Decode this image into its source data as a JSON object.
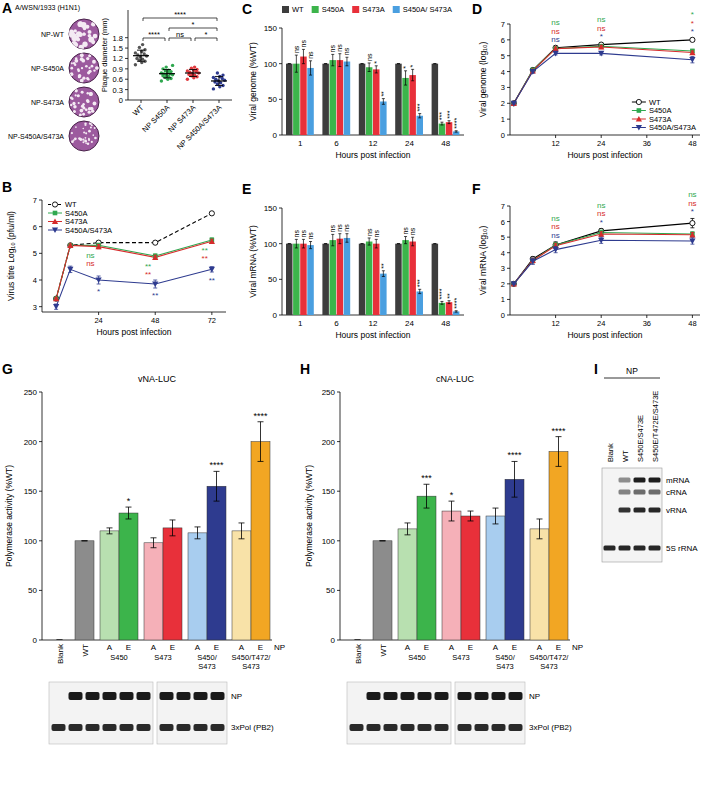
{
  "chart_data": [
    {
      "panel": "A",
      "type": "dot",
      "ylabel": "Plaque diameter (mm)",
      "categories": [
        "WT",
        "NP S450A",
        "NP S473A",
        "NP S450A/S473A"
      ],
      "colors": [
        "#555555",
        "#2fa84f",
        "#e03a3e",
        "#2e3b8f"
      ],
      "points": [
        [
          1.02,
          1.08,
          1.12,
          1.15,
          1.18,
          1.2,
          1.24,
          1.27,
          1.3,
          1.33,
          1.36,
          1.4,
          1.45,
          1.52,
          1.6
        ],
        [
          0.55,
          0.6,
          0.62,
          0.65,
          0.68,
          0.7,
          0.72,
          0.73,
          0.75,
          0.76,
          0.78,
          0.8,
          0.82,
          0.84,
          0.86,
          0.9,
          0.95,
          1.0
        ],
        [
          0.6,
          0.64,
          0.67,
          0.7,
          0.72,
          0.74,
          0.76,
          0.78,
          0.8,
          0.82,
          0.84,
          0.86,
          0.88,
          0.92,
          0.95
        ],
        [
          0.32,
          0.38,
          0.42,
          0.46,
          0.5,
          0.52,
          0.55,
          0.57,
          0.6,
          0.62,
          0.65,
          0.68,
          0.72,
          0.78
        ]
      ],
      "values": [
        1.28,
        0.76,
        0.78,
        0.55
      ],
      "error": [
        0.16,
        0.12,
        0.1,
        0.13
      ],
      "ylim": [
        0,
        2.6
      ],
      "yticks": [
        0,
        0.3,
        0.6,
        0.9,
        1.2,
        1.5,
        1.8
      ],
      "annotations": [
        {
          "from": 0,
          "to": 1,
          "text": "****"
        },
        {
          "from": 1,
          "to": 2,
          "text": "ns"
        },
        {
          "from": 2,
          "to": 3,
          "text": "*"
        },
        {
          "from": 1,
          "to": 3,
          "text": "*"
        },
        {
          "from": 0,
          "to": 3,
          "text": "****"
        }
      ]
    },
    {
      "panel": "B",
      "type": "line",
      "xlabel": "Hours post infection",
      "ylabel": "Virus titre Log₁₀ (pfu/ml)",
      "x": [
        6,
        12,
        24,
        48,
        72
      ],
      "xlim": [
        0,
        78
      ],
      "xticks": [
        24,
        48,
        72
      ],
      "ylim": [
        2.8,
        7
      ],
      "yticks": [
        3,
        4,
        5,
        6,
        7
      ],
      "legend": "upper left",
      "series": [
        {
          "name": "WT",
          "color": "#000000",
          "marker": "open-circle",
          "line_style": "dashed",
          "values": [
            3.3,
            5.3,
            5.4,
            5.4,
            6.5
          ],
          "error": [
            0.05,
            0.05,
            0.05,
            0.05,
            0.05
          ]
        },
        {
          "name": "S450A",
          "color": "#2fa84f",
          "marker": "square",
          "line_style": "solid",
          "values": [
            3.3,
            5.3,
            5.3,
            4.9,
            5.5
          ],
          "error": [
            0.05,
            0.05,
            0.08,
            0.08,
            0.08
          ],
          "significance": [
            null,
            null,
            "ns",
            "**",
            "**"
          ]
        },
        {
          "name": "S473A",
          "color": "#d62c2c",
          "marker": "triangle",
          "line_style": "solid",
          "values": [
            3.3,
            5.3,
            5.25,
            4.85,
            5.45
          ],
          "error": [
            0.05,
            0.05,
            0.08,
            0.08,
            0.08
          ],
          "significance": [
            null,
            null,
            "ns",
            "**",
            "**"
          ]
        },
        {
          "name": "S450A/S473A",
          "color": "#2e3b8f",
          "marker": "triangle-down",
          "line_style": "solid",
          "values": [
            3.0,
            4.4,
            4.0,
            3.85,
            4.4
          ],
          "error": [
            0.1,
            0.12,
            0.15,
            0.15,
            0.1
          ],
          "significance": [
            null,
            null,
            "*",
            "**",
            "**"
          ]
        }
      ]
    },
    {
      "panel": "C",
      "type": "bar",
      "xlabel": "Hours post infection",
      "ylabel": "Viral genome (%WT)",
      "categories": [
        "1",
        "6",
        "12",
        "24",
        "48"
      ],
      "ylim": [
        0,
        150
      ],
      "yticks": [
        0,
        50,
        100,
        150
      ],
      "legend": "top",
      "series": [
        {
          "name": "WT",
          "color": "#3d3d3d",
          "values": [
            100,
            100,
            100,
            100,
            100
          ],
          "error": [
            0,
            0,
            0,
            0,
            0
          ]
        },
        {
          "name": "S450A",
          "color": "#3cb44b",
          "values": [
            100,
            105,
            95,
            80,
            16
          ],
          "error": [
            12,
            8,
            6,
            10,
            2
          ],
          "significance": [
            "ns",
            "ns",
            "ns",
            "*",
            "***"
          ]
        },
        {
          "name": "S473A",
          "color": "#e8303a",
          "values": [
            110,
            105,
            92,
            84,
            18
          ],
          "error": [
            10,
            9,
            5,
            8,
            2
          ],
          "significance": [
            "ns",
            "ns",
            "*",
            "*",
            "***"
          ]
        },
        {
          "name": "S450A/ S473A",
          "color": "#4a9fe0",
          "values": [
            94,
            103,
            47,
            27,
            5
          ],
          "error": [
            10,
            6,
            4,
            3,
            1
          ],
          "significance": [
            "ns",
            "ns",
            "**",
            "***",
            "****"
          ]
        }
      ]
    },
    {
      "panel": "D",
      "type": "line",
      "xlabel": "Hours post infection",
      "ylabel": "Viral genome (log₁₀)",
      "x": [
        1,
        6,
        12,
        24,
        48
      ],
      "xlim": [
        0,
        50
      ],
      "xticks": [
        12,
        24,
        36,
        48
      ],
      "ylim": [
        0,
        7
      ],
      "yticks": [
        0,
        1,
        2,
        3,
        4,
        5,
        6,
        7
      ],
      "legend": "lower right",
      "series": [
        {
          "name": "WT",
          "color": "#000000",
          "marker": "open-circle",
          "line_style": "solid",
          "values": [
            2.0,
            4.1,
            5.5,
            5.7,
            6.0
          ],
          "error": [
            0.05,
            0.1,
            0.1,
            0.1,
            0.1
          ]
        },
        {
          "name": "S450A",
          "color": "#2fa84f",
          "marker": "square",
          "line_style": "solid",
          "values": [
            2.0,
            4.1,
            5.45,
            5.6,
            5.3
          ],
          "error": [
            0.05,
            0.1,
            0.1,
            0.1,
            0.1
          ],
          "significance": [
            null,
            null,
            "ns",
            "ns",
            "*"
          ]
        },
        {
          "name": "S473A",
          "color": "#d62c2c",
          "marker": "triangle",
          "line_style": "solid",
          "values": [
            2.0,
            4.05,
            5.45,
            5.55,
            5.2
          ],
          "error": [
            0.05,
            0.1,
            0.1,
            0.1,
            0.1
          ],
          "significance": [
            null,
            null,
            "ns",
            "ns",
            "*"
          ]
        },
        {
          "name": "S450A/S473A",
          "color": "#2e3b8f",
          "marker": "triangle-down",
          "line_style": "solid",
          "values": [
            2.0,
            4.0,
            5.15,
            5.15,
            4.75
          ],
          "error": [
            0.05,
            0.1,
            0.1,
            0.1,
            0.2
          ],
          "significance": [
            null,
            null,
            "ns",
            "*",
            "*"
          ]
        }
      ]
    },
    {
      "panel": "E",
      "type": "bar",
      "xlabel": "Hours post infection",
      "ylabel": "Viral mRNA (%WT)",
      "categories": [
        "1",
        "6",
        "12",
        "24",
        "48"
      ],
      "ylim": [
        0,
        150
      ],
      "yticks": [
        0,
        50,
        100,
        150
      ],
      "series": [
        {
          "color": "#3d3d3d",
          "values": [
            100,
            100,
            100,
            100,
            100
          ],
          "error": [
            0,
            0,
            0,
            0,
            0
          ]
        },
        {
          "color": "#3cb44b",
          "values": [
            100,
            105,
            103,
            105,
            17
          ],
          "error": [
            6,
            8,
            5,
            5,
            2
          ],
          "significance": [
            "ns",
            "ns",
            "ns",
            "ns",
            "****"
          ]
        },
        {
          "color": "#e8303a",
          "values": [
            100,
            107,
            100,
            103,
            18
          ],
          "error": [
            6,
            7,
            6,
            6,
            2
          ],
          "significance": [
            "ns",
            "ns",
            "ns",
            "ns",
            "**"
          ]
        },
        {
          "color": "#4a9fe0",
          "values": [
            98,
            108,
            58,
            33,
            5
          ],
          "error": [
            5,
            6,
            4,
            3,
            1
          ],
          "significance": [
            "ns",
            "ns",
            "**",
            "***",
            "****"
          ]
        }
      ]
    },
    {
      "panel": "F",
      "type": "line",
      "xlabel": "Hours post infection",
      "ylabel": "Viral mRNA (log₁₀)",
      "x": [
        1,
        6,
        12,
        24,
        48
      ],
      "xlim": [
        0,
        50
      ],
      "xticks": [
        12,
        24,
        36,
        48
      ],
      "ylim": [
        0,
        7
      ],
      "yticks": [
        0,
        1,
        2,
        3,
        4,
        5,
        6,
        7
      ],
      "series": [
        {
          "color": "#000000",
          "marker": "open-circle",
          "line_style": "solid",
          "values": [
            2.0,
            3.6,
            4.5,
            5.4,
            5.9
          ],
          "error": [
            0.05,
            0.15,
            0.2,
            0.15,
            0.3
          ]
        },
        {
          "color": "#2fa84f",
          "marker": "square",
          "line_style": "solid",
          "values": [
            2.0,
            3.5,
            4.5,
            5.3,
            5.2
          ],
          "error": [
            0.05,
            0.15,
            0.15,
            0.15,
            0.15
          ],
          "significance": [
            null,
            null,
            "ns",
            "ns",
            "ns"
          ]
        },
        {
          "color": "#d62c2c",
          "marker": "triangle",
          "line_style": "solid",
          "values": [
            2.0,
            3.5,
            4.45,
            5.2,
            5.15
          ],
          "error": [
            0.05,
            0.15,
            0.15,
            0.15,
            0.15
          ],
          "significance": [
            null,
            null,
            "ns",
            "ns",
            "ns"
          ]
        },
        {
          "color": "#2e3b8f",
          "marker": "triangle-down",
          "line_style": "solid",
          "values": [
            2.0,
            3.45,
            4.2,
            4.8,
            4.75
          ],
          "error": [
            0.05,
            0.2,
            0.2,
            0.2,
            0.2
          ],
          "significance": [
            null,
            null,
            "ns",
            "*",
            "*"
          ]
        }
      ]
    },
    {
      "panel": "G",
      "type": "bar",
      "title": "vNA-LUC",
      "ylabel": "Polymerase activity (%WT)",
      "xlabel": "NP",
      "categories": [
        "Blank",
        "WT",
        "A",
        "E",
        "A",
        "E",
        "A",
        "E",
        "A",
        "E"
      ],
      "groups": [
        {
          "label": "S450",
          "span": [
            2,
            3
          ]
        },
        {
          "label": "S473",
          "span": [
            4,
            5
          ]
        },
        {
          "label": "S450/ S473",
          "span": [
            6,
            7
          ]
        },
        {
          "label": "S450/T472/ S473",
          "span": [
            8,
            9
          ]
        }
      ],
      "values": [
        0,
        100,
        110,
        128,
        98,
        113,
        108,
        155,
        110,
        200
      ],
      "error": [
        0,
        0,
        3,
        6,
        5,
        8,
        6,
        15,
        8,
        20
      ],
      "colors": [
        "#ffffff",
        "#8c8c8c",
        "#b8e0b0",
        "#3cb44b",
        "#f5b0b8",
        "#e8303a",
        "#a8cdef",
        "#2e3b8f",
        "#f8e2a8",
        "#f2a623"
      ],
      "significance": [
        null,
        null,
        null,
        "*",
        null,
        null,
        null,
        "****",
        null,
        "****"
      ],
      "ylim": [
        0,
        250
      ],
      "yticks": [
        0,
        50,
        100,
        150,
        200,
        250
      ]
    },
    {
      "panel": "H",
      "type": "bar",
      "title": "cNA-LUC",
      "ylabel": "Polymerase activity (%WT)",
      "xlabel": "NP",
      "categories": [
        "Blank",
        "WT",
        "A",
        "E",
        "A",
        "E",
        "A",
        "E",
        "A",
        "E"
      ],
      "groups": [
        {
          "label": "S450",
          "span": [
            2,
            3
          ]
        },
        {
          "label": "S473",
          "span": [
            4,
            5
          ]
        },
        {
          "label": "S450/ S473",
          "span": [
            6,
            7
          ]
        },
        {
          "label": "S450/T472/ S473",
          "span": [
            8,
            9
          ]
        }
      ],
      "values": [
        0,
        100,
        112,
        145,
        130,
        125,
        125,
        162,
        112,
        190
      ],
      "error": [
        0,
        0,
        6,
        12,
        10,
        5,
        8,
        18,
        10,
        15
      ],
      "colors": [
        "#ffffff",
        "#8c8c8c",
        "#b8e0b0",
        "#3cb44b",
        "#f5b0b8",
        "#e8303a",
        "#a8cdef",
        "#2e3b8f",
        "#f8e2a8",
        "#f2a623"
      ],
      "significance": [
        null,
        null,
        null,
        "***",
        "*",
        null,
        null,
        "****",
        null,
        "****"
      ],
      "ylim": [
        0,
        250
      ],
      "yticks": [
        0,
        50,
        100,
        150,
        200,
        250
      ]
    }
  ],
  "plaque_images": {
    "title": "A/WSN/1933 (H1N1)",
    "labels": [
      "NP-WT",
      "NP-S450A",
      "NP-S473A",
      "NP-S450A/S473A"
    ]
  },
  "blots": [
    {
      "labels": [
        "NP",
        "3xPol (PB2)"
      ]
    },
    {
      "labels": [
        "NP",
        "3xPol (PB2)"
      ]
    }
  ],
  "gel": {
    "panel": "I",
    "header": "NP",
    "lanes": [
      "Blank",
      "WT",
      "S450E/S473E",
      "S450E/T472E/S473E"
    ],
    "bands": [
      "mRNA",
      "cRNA",
      "vRNA",
      "5S rRNA"
    ]
  }
}
